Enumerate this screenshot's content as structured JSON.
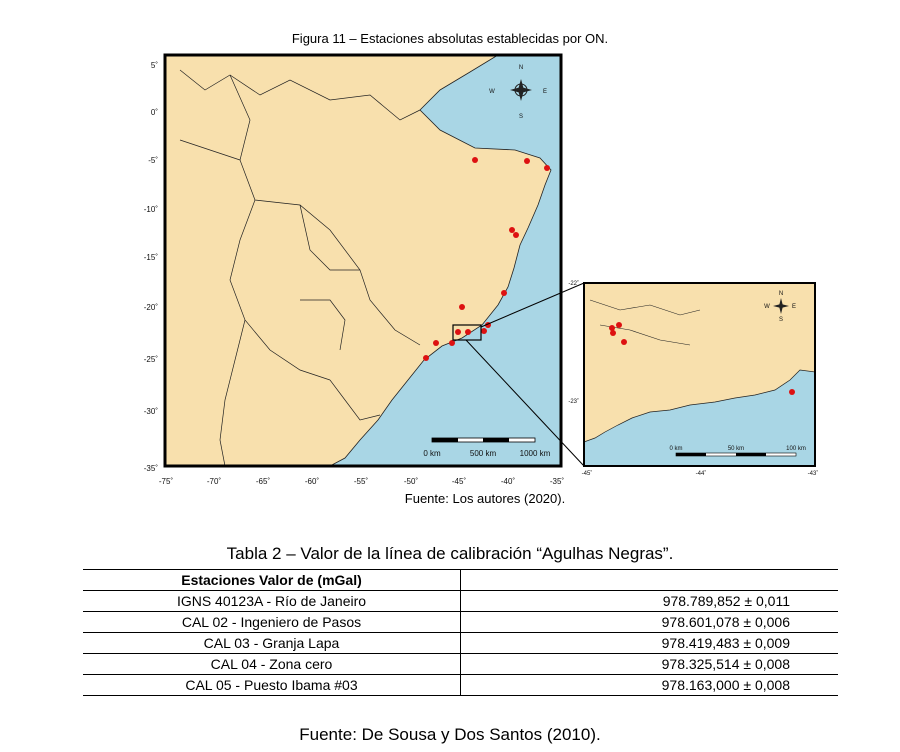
{
  "figure": {
    "caption": "Figura 11 – Estaciones absolutas establecidas por ON.",
    "source": "Fuente: Los autores (2020).",
    "lat_ticks": [
      "5˚",
      "0˚",
      "-5˚",
      "-10˚",
      "-15˚",
      "-20˚",
      "-25˚",
      "-30˚",
      "-35˚"
    ],
    "lon_ticks": [
      "-75˚",
      "-70˚",
      "-65˚",
      "-60˚",
      "-55˚",
      "-50˚",
      "-45˚",
      "-40˚",
      "-35˚"
    ],
    "scale_labels": [
      "0 km",
      "500 km",
      "1000 km"
    ],
    "compass": {
      "n": "N",
      "s": "S",
      "e": "E",
      "w": "W"
    },
    "inset": {
      "lat_ticks": [
        "-22˚",
        "-23˚"
      ],
      "lon_ticks": [
        "-45˚",
        "-44˚",
        "-43˚"
      ],
      "scale_labels": [
        "0 km",
        "50 km",
        "100 km"
      ],
      "compass": {
        "n": "N",
        "s": "S",
        "e": "E",
        "w": "W"
      }
    },
    "colors": {
      "ocean": "#a9d6e5",
      "land": "#f8e0ad",
      "station": "#dd1111"
    }
  },
  "table": {
    "caption": "Tabla 2 – Valor de la línea de calibración “Agulhas Negras”.",
    "header": [
      "Estaciones Valor de (mGal)",
      ""
    ],
    "rows": [
      {
        "station": "IGNS 40123A - Río de Janeiro",
        "value": "978.789,852 ± 0,011"
      },
      {
        "station": "CAL 02 - Ingeniero de Pasos",
        "value": "978.601,078 ± 0,006"
      },
      {
        "station": "CAL 03 - Granja Lapa",
        "value": "978.419,483 ± 0,009"
      },
      {
        "station": "CAL 04 - Zona cero",
        "value": "978.325,514 ± 0,008"
      },
      {
        "station": "CAL 05 - Puesto Ibama #03",
        "value": "978.163,000 ± 0,008"
      }
    ],
    "source": "Fuente: De Sousa y Dos Santos (2010)."
  }
}
